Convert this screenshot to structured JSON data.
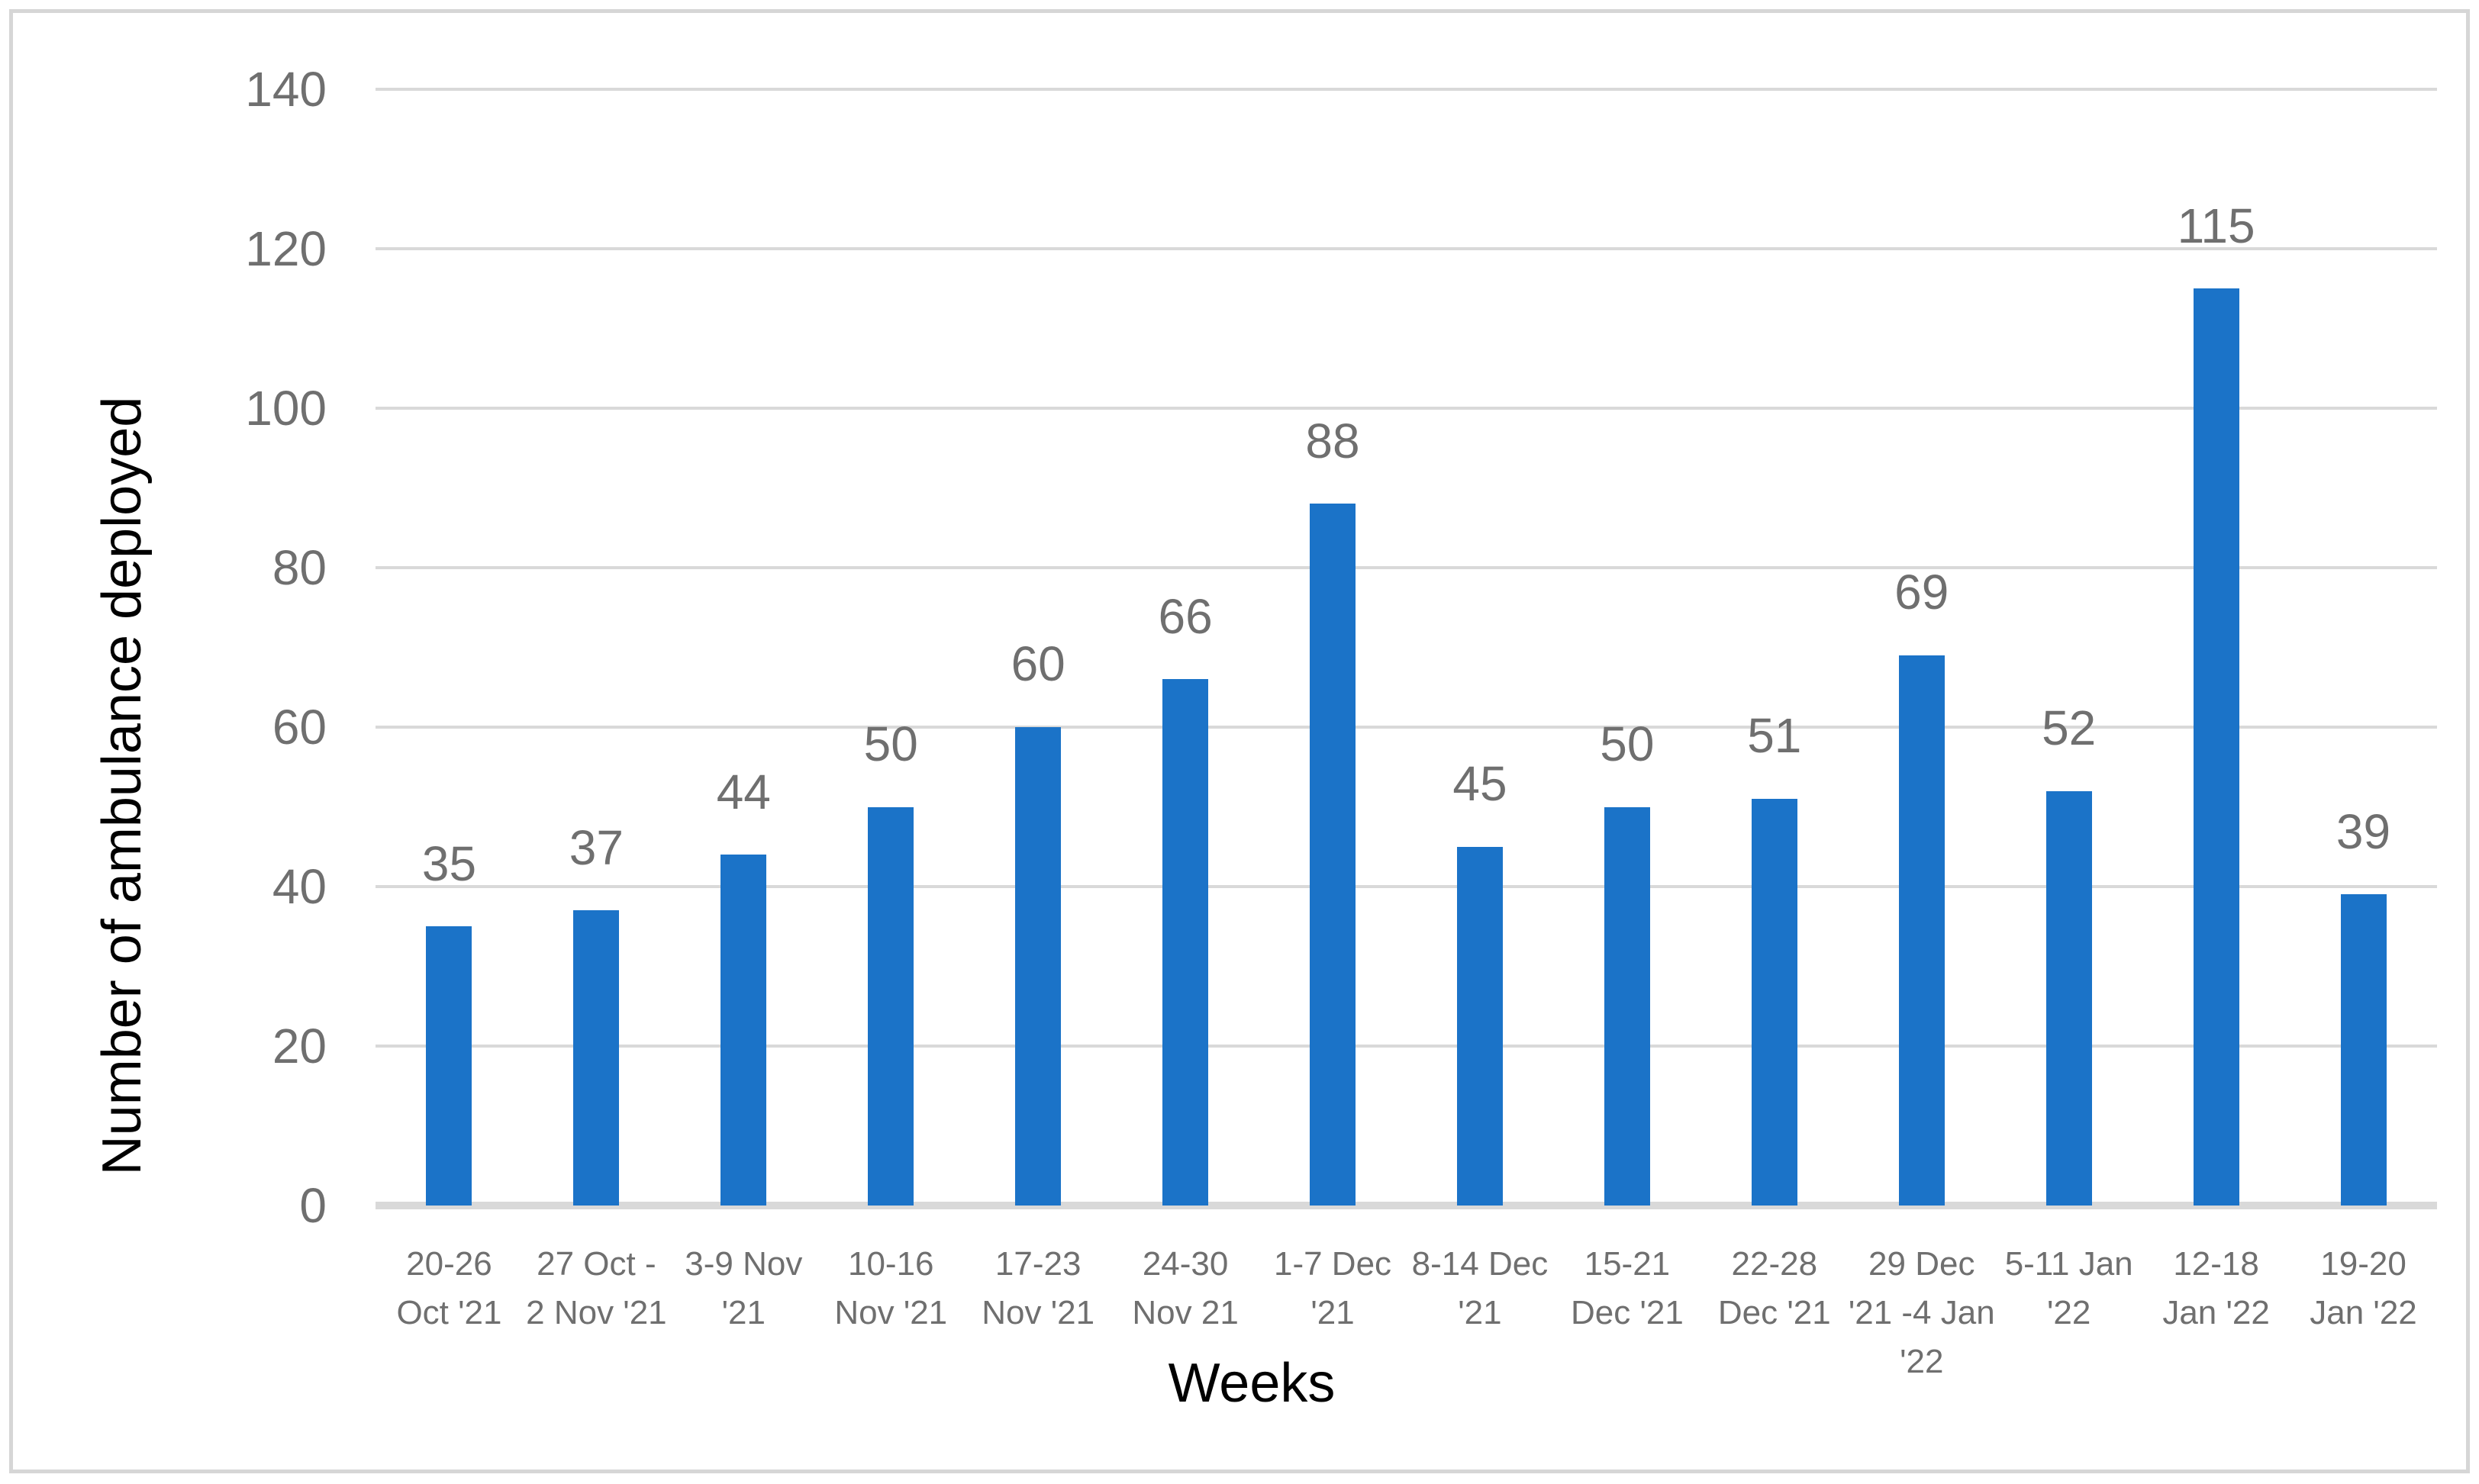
{
  "chart_data": {
    "type": "bar",
    "title": "",
    "xlabel": "Weeks",
    "ylabel": "Number of ambulance deployed",
    "categories": [
      "20-26\nOct '21",
      "27 Oct -\n2 Nov '21",
      "3-9 Nov\n'21",
      "10-16\nNov '21",
      "17-23\nNov '21",
      "24-30\nNov 21",
      "1-7 Dec\n'21",
      "8-14 Dec\n'21",
      "15-21\nDec '21",
      "22-28\nDec '21",
      "29 Dec\n'21 -4 Jan\n'22",
      "5-11 Jan\n'22",
      "12-18\nJan '22",
      "19-20\nJan '22"
    ],
    "values": [
      35,
      37,
      44,
      50,
      60,
      66,
      88,
      45,
      50,
      51,
      69,
      52,
      115,
      39
    ],
    "data_labels": [
      "35",
      "37",
      "44",
      "50",
      "60",
      "66",
      "88",
      "45",
      "50",
      "51",
      "69",
      "52",
      "115",
      "39"
    ],
    "ylim": [
      0,
      140
    ],
    "yticks": [
      0,
      20,
      40,
      60,
      80,
      100,
      120,
      140
    ],
    "grid": "horizontal",
    "legend": "none",
    "colors": {
      "bar": "#1B73C8",
      "tick_label": "#6F6F6F",
      "data_label": "#6F6F6F",
      "gridline": "#D9D9D9",
      "axis_line": "#D9D9D9",
      "axis_title": "#000000",
      "frame_border": "#D6D6D6",
      "background": "#FFFFFF"
    }
  }
}
